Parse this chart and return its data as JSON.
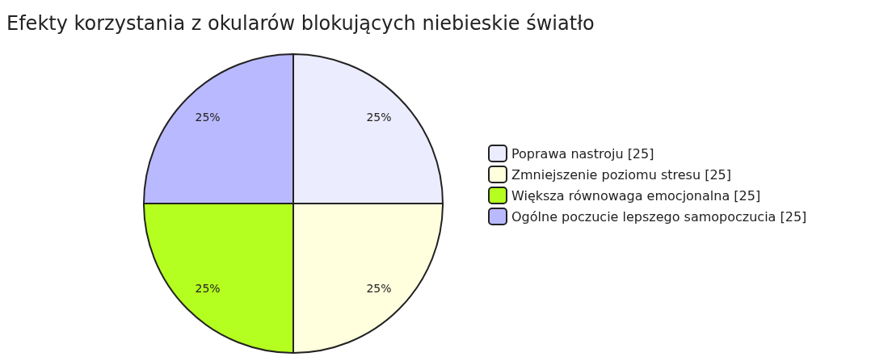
{
  "chart_data": {
    "type": "pie",
    "title": "Efekty korzystania z okularów blokujących niebieskie światło",
    "categories": [
      "Poprawa nastroju [25]",
      "Zmniejszenie poziomu stresu [25]",
      "Większa równowaga emocjonalna [25]",
      "Ogólne poczucie lepszego samopoczucia [25]"
    ],
    "values": [
      25,
      25,
      25,
      25
    ],
    "colors": [
      "#ececff",
      "#ffffde",
      "#b5ff20",
      "#b9b9ff"
    ],
    "value_labels": [
      "25%",
      "25%",
      "25%",
      "25%"
    ],
    "legend": "right"
  }
}
